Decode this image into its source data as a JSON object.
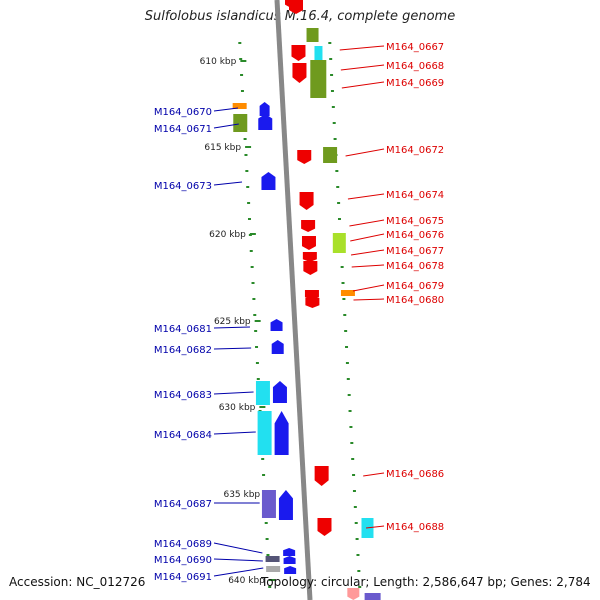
{
  "title": "Sulfolobus islandicus M.16.4, complete genome",
  "footer": {
    "accession": "Accession: NC_012726",
    "summary": "Topology: circular; Length: 2,586,647 bp; Genes: 2,784"
  },
  "colors": {
    "right_strand_label": "#dd0000",
    "left_strand_label": "#0000aa",
    "backbone": "#888888",
    "tick_marks": "#2a8a2a"
  },
  "position_labels": [
    "610 kbp",
    "615 kbp",
    "620 kbp",
    "625 kbp",
    "630 kbp",
    "635 kbp",
    "640 kbp"
  ],
  "genes_right": [
    {
      "locus": "M164_0667",
      "color": "#ee0000"
    },
    {
      "locus": "M164_0668",
      "color": "#ee0000"
    },
    {
      "locus": "M164_0669",
      "color": "#ee0000"
    },
    {
      "locus": "M164_0672",
      "color": "#ee0000"
    },
    {
      "locus": "M164_0674",
      "color": "#ee0000"
    },
    {
      "locus": "M164_0675",
      "color": "#ee0000"
    },
    {
      "locus": "M164_0676",
      "color": "#ee0000"
    },
    {
      "locus": "M164_0677",
      "color": "#ee0000"
    },
    {
      "locus": "M164_0678",
      "color": "#ee0000"
    },
    {
      "locus": "M164_0679",
      "color": "#ee0000"
    },
    {
      "locus": "M164_0680",
      "color": "#ee0000"
    },
    {
      "locus": "M164_0686",
      "color": "#ee0000"
    },
    {
      "locus": "M164_0688",
      "color": "#ee0000"
    }
  ],
  "genes_left": [
    {
      "locus": "M164_0670",
      "color": "#1a1aee"
    },
    {
      "locus": "M164_0671",
      "color": "#1a1aee"
    },
    {
      "locus": "M164_0673",
      "color": "#1a1aee"
    },
    {
      "locus": "M164_0681",
      "color": "#1a1aee"
    },
    {
      "locus": "M164_0682",
      "color": "#1a1aee"
    },
    {
      "locus": "M164_0683",
      "color": "#1a1aee"
    },
    {
      "locus": "M164_0684",
      "color": "#1a1aee"
    },
    {
      "locus": "M164_0687",
      "color": "#1a1aee"
    },
    {
      "locus": "M164_0689",
      "color": "#1a1aee"
    },
    {
      "locus": "M164_0690",
      "color": "#1a1aee"
    },
    {
      "locus": "M164_0691",
      "color": "#1a1aee"
    }
  ],
  "feature_colors": {
    "olive": "#6f9a1e",
    "lime": "#a9e02a",
    "cyan": "#22e0f0",
    "orange": "#ff8c00",
    "purple": "#6a5acd",
    "gray": "#aaaaaa"
  }
}
